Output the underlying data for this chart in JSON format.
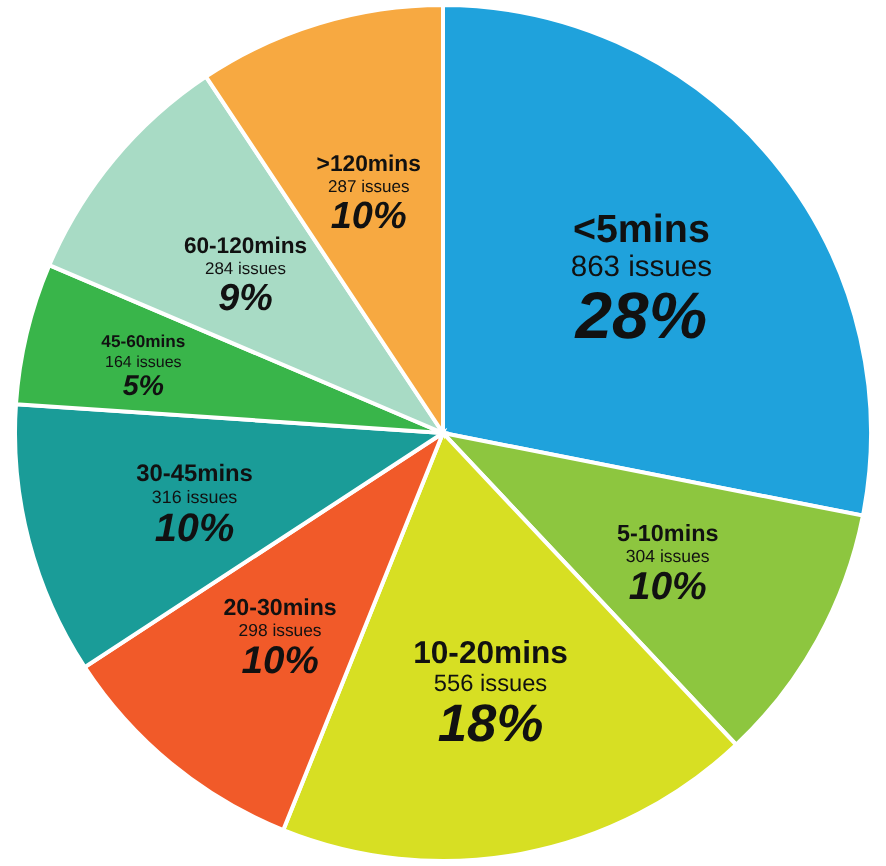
{
  "chart_data": {
    "type": "pie",
    "categories": [
      "<5mins",
      "5-10mins",
      "10-20mins",
      "20-30mins",
      "30-45mins",
      "45-60mins",
      "60-120mins",
      ">120mins"
    ],
    "values": [
      863,
      304,
      556,
      298,
      316,
      164,
      284,
      287
    ],
    "value_labels": [
      "863 issues",
      "304 issues",
      "556 issues",
      "298 issues",
      "316 issues",
      "164 issues",
      "284 issues",
      "287 issues"
    ],
    "annotations": [
      "28%",
      "10%",
      "18%",
      "10%",
      "10%",
      "5%",
      "9%",
      "10%"
    ],
    "colors": [
      "#1fa2dc",
      "#8dc63f",
      "#d7df23",
      "#f15a29",
      "#1a9c98",
      "#39b54a",
      "#a8dbc5",
      "#f7a941"
    ]
  }
}
